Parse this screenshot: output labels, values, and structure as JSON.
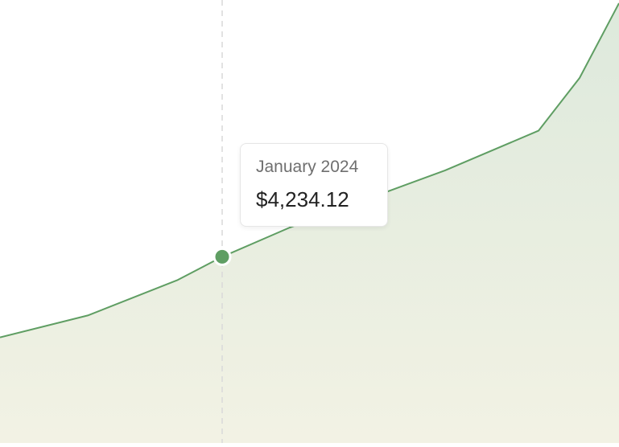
{
  "chart_data": {
    "type": "area",
    "values": [
      2.4,
      2.9,
      3.7,
      4.23412,
      4.9,
      6.2,
      7.1,
      8.3,
      10.0
    ],
    "active_index": 3,
    "grid": false,
    "colors": {
      "line": "#5f9e63",
      "fill_top": "#dde9dc",
      "fill_bottom": "#f2f2e4",
      "marker": "#5f9e63",
      "crosshair": "#d9d9d9"
    }
  },
  "tooltip": {
    "label": "January 2024",
    "value": "$4,234.12"
  }
}
